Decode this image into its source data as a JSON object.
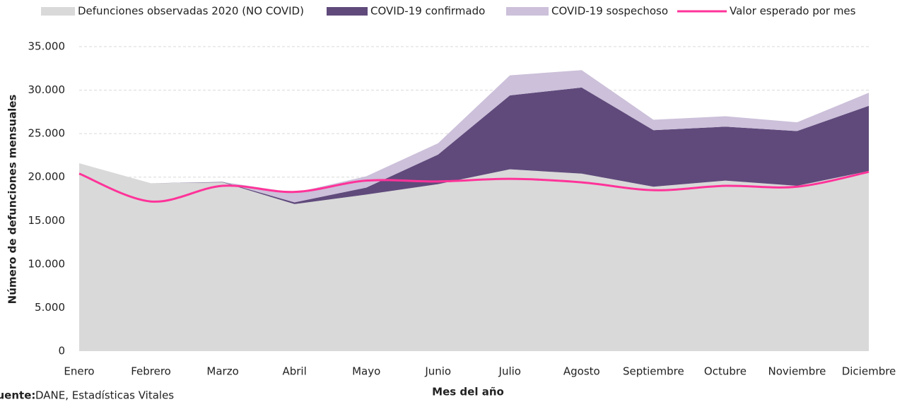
{
  "chart_data": {
    "type": "stacked-area-line",
    "x_label": "Mes del año",
    "y_label": "Número de defunciones mensuales",
    "source_label": "Fuente:",
    "source_text": "DANE, Estadísticas Vitales",
    "categories": [
      "Enero",
      "Febrero",
      "Marzo",
      "Abril",
      "Mayo",
      "Junio",
      "Julio",
      "Agosto",
      "Septiembre",
      "Octubre",
      "Noviembre",
      "Diciembre"
    ],
    "series": [
      {
        "name": "Defunciones observadas 2020 (NO COVID)",
        "color": "#d9d9d9",
        "kind": "area",
        "values": [
          21600,
          19300,
          19400,
          16900,
          18000,
          19200,
          20900,
          20400,
          18900,
          19600,
          19000,
          20700
        ]
      },
      {
        "name": "COVID-19 confirmado",
        "color": "#604a7b",
        "kind": "area",
        "values": [
          0,
          0,
          50,
          200,
          800,
          3400,
          8500,
          9900,
          6500,
          6200,
          6300,
          7500
        ]
      },
      {
        "name": "COVID-19 sospechoso",
        "color": "#ccc0da",
        "kind": "area",
        "values": [
          0,
          0,
          0,
          1100,
          1300,
          1300,
          2300,
          2000,
          1200,
          1200,
          1000,
          1500
        ]
      },
      {
        "name": "Valor esperado por mes",
        "color": "#ff3399",
        "kind": "line",
        "values": [
          20400,
          17200,
          19000,
          18300,
          19600,
          19500,
          19800,
          19400,
          18500,
          19000,
          18900,
          20600
        ]
      }
    ],
    "ylim": [
      0,
      35000
    ],
    "yticks": [
      0,
      {
        "value": 5000,
        "label": "5.000"
      },
      {
        "value": 10000,
        "label": "10.000"
      },
      {
        "value": 15000,
        "label": "15.000"
      },
      {
        "value": 20000,
        "label": "20.000"
      },
      {
        "value": 25000,
        "label": "25.000"
      },
      {
        "value": 30000,
        "label": "30.000"
      },
      {
        "value": 35000,
        "label": "35.000"
      }
    ],
    "grid": true,
    "legend": "top"
  }
}
